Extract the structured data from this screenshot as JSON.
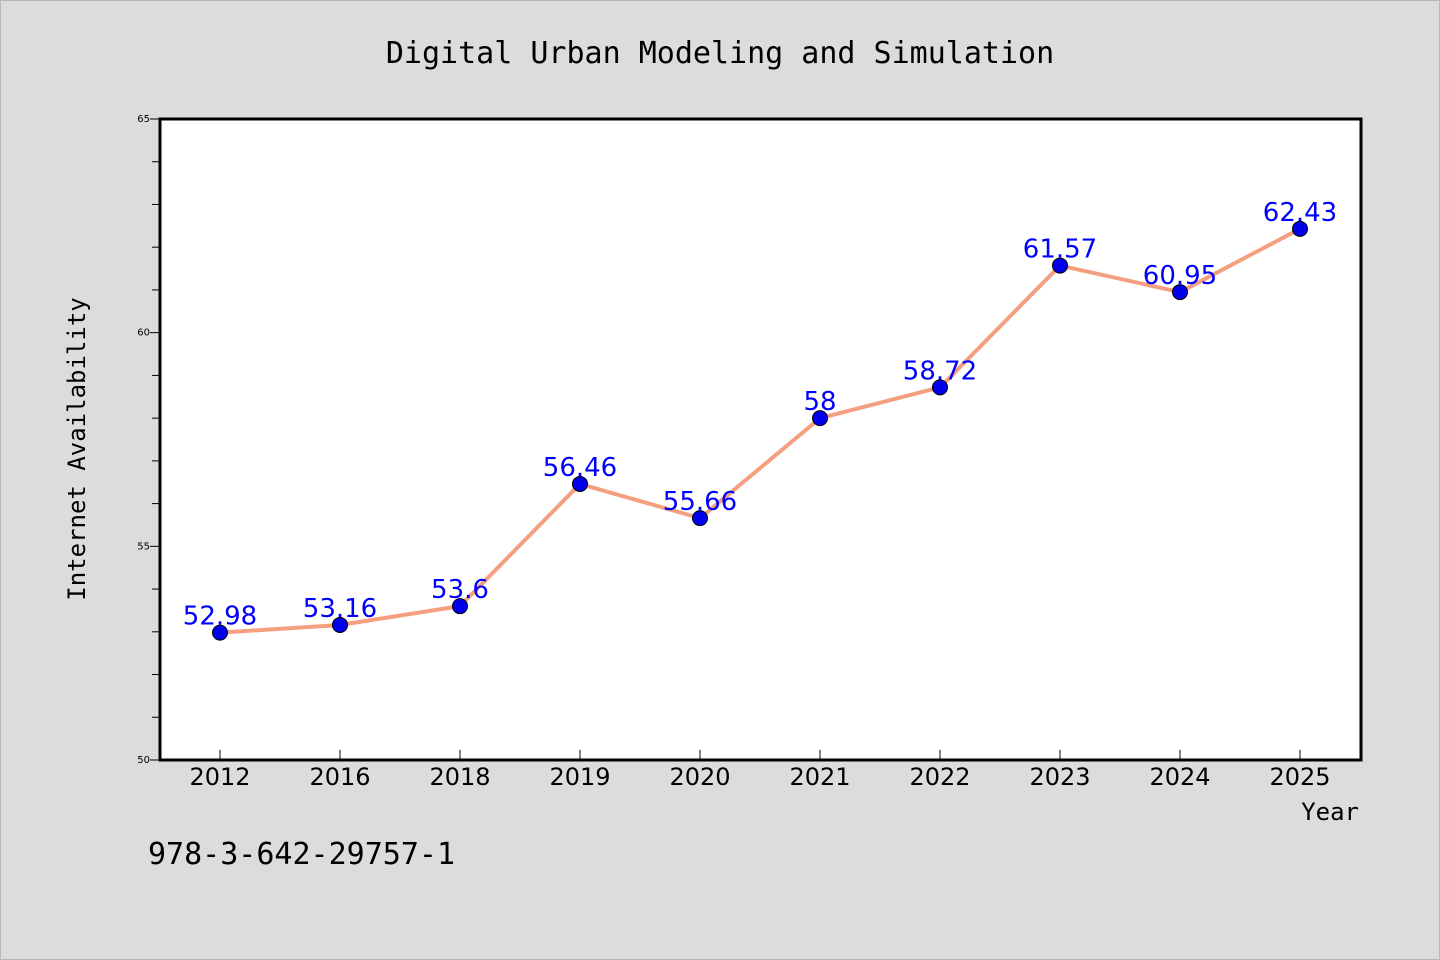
{
  "chart_data": {
    "type": "line",
    "title": "Digital Urban Modeling and Simulation",
    "xlabel": "Year",
    "ylabel": "Internet Availability",
    "categories": [
      "2012",
      "2016",
      "2018",
      "2019",
      "2020",
      "2021",
      "2022",
      "2023",
      "2024",
      "2025"
    ],
    "series": [
      {
        "values": [
          52.98,
          53.16,
          53.6,
          56.46,
          55.66,
          58,
          58.72,
          61.57,
          60.95,
          62.43
        ],
        "data_labels": [
          "52.98",
          "53.16",
          "53.6",
          "56.46",
          "55.66",
          "58",
          "58.72",
          "61.57",
          "60.95",
          "62.43"
        ],
        "line_color": "#f4a080",
        "marker_color": "#0000ee"
      }
    ],
    "ylim": [
      50,
      65
    ],
    "y_major_ticks": [
      50,
      55,
      60,
      65
    ],
    "y_minor_step": 1,
    "grid": false,
    "legend": "none",
    "label_color": "#0000ff"
  },
  "footnote": "978-3-642-29757-1",
  "colors": {
    "background": "#dcdcdc",
    "plot_area": "#ffffff",
    "line": "#f4a080",
    "marker": "#0000ee",
    "label": "#0000ff"
  }
}
